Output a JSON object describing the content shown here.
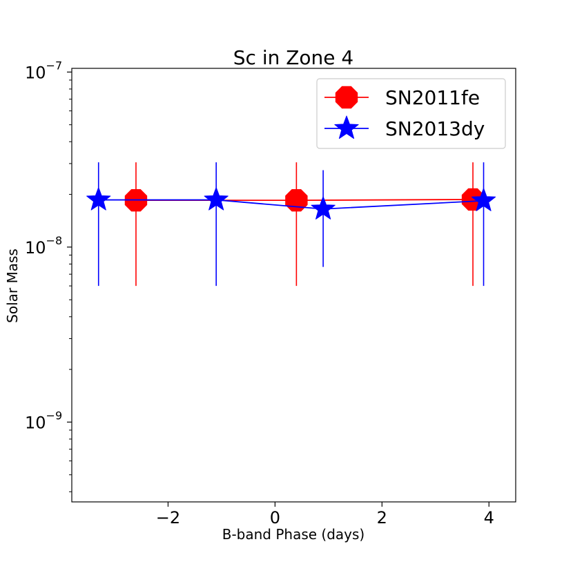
{
  "chart_data": {
    "type": "line",
    "title": "Sc in Zone 4",
    "xlabel": "B-band Phase (days)",
    "ylabel": "Solar Mass",
    "yscale": "log",
    "xlim": [
      -3.8,
      4.5
    ],
    "ylim": [
      3.5e-10,
      1.05e-07
    ],
    "x_ticks": [
      -2,
      0,
      2,
      4
    ],
    "x_tick_labels": [
      "−2",
      "0",
      "2",
      "4"
    ],
    "y_ticks": [
      {
        "value": 1e-09,
        "base": "10",
        "exp": "−9"
      },
      {
        "value": 1e-08,
        "base": "10",
        "exp": "−8"
      },
      {
        "value": 1e-07,
        "base": "10",
        "exp": "−7"
      }
    ],
    "y_minor_ticks": [
      4e-10,
      5e-10,
      6e-10,
      7e-10,
      8e-10,
      9e-10,
      2e-09,
      3e-09,
      4e-09,
      5e-09,
      6e-09,
      7e-09,
      8e-09,
      9e-09,
      2e-08,
      3e-08,
      4e-08,
      5e-08,
      6e-08,
      7e-08,
      8e-08,
      9e-08
    ],
    "legend_position": "top-right",
    "series": [
      {
        "name": "SN2011fe",
        "color": "#ff0000",
        "marker": "octagon",
        "x": [
          -2.6,
          0.4,
          3.7
        ],
        "y": [
          1.85e-08,
          1.85e-08,
          1.87e-08
        ],
        "err_low": [
          6e-09,
          6e-09,
          6e-09
        ],
        "err_high": [
          3.05e-08,
          3.05e-08,
          3.05e-08
        ]
      },
      {
        "name": "SN2013dy",
        "color": "#0000ff",
        "marker": "star",
        "x": [
          -3.3,
          -1.1,
          0.9,
          3.9
        ],
        "y": [
          1.86e-08,
          1.86e-08,
          1.65e-08,
          1.84e-08
        ],
        "err_low": [
          6e-09,
          6e-09,
          7.7e-09,
          6e-09
        ],
        "err_high": [
          3.05e-08,
          3.05e-08,
          2.75e-08,
          3.05e-08
        ]
      }
    ]
  }
}
